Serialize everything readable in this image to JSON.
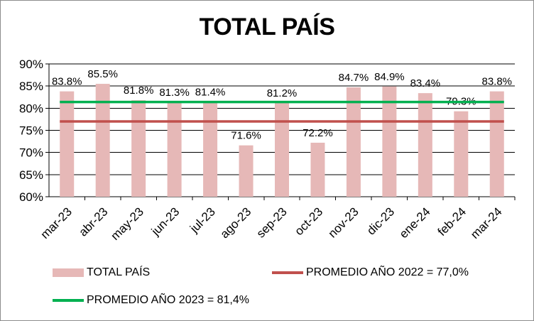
{
  "chart_data": {
    "type": "bar",
    "title": "TOTAL PAÍS",
    "categories": [
      "mar-23",
      "abr-23",
      "may-23",
      "jun-23",
      "jul-23",
      "ago-23",
      "sep-23",
      "oct-23",
      "nov-23",
      "dic-23",
      "ene-24",
      "feb-24",
      "mar-24"
    ],
    "series": [
      {
        "name": "TOTAL PAÍS",
        "type": "bar",
        "color": "#e6b8b7",
        "values": [
          83.8,
          85.5,
          81.8,
          81.3,
          81.4,
          71.6,
          81.2,
          72.2,
          84.7,
          84.9,
          83.4,
          79.3,
          83.8
        ],
        "labels": [
          "83.8%",
          "85.5%",
          "81.8%",
          "81.3%",
          "81.4%",
          "71.6%",
          "81.2%",
          "72.2%",
          "84.7%",
          "84.9%",
          "83.4%",
          "79.3%",
          "83.8%"
        ]
      },
      {
        "name": "PROMEDIO AÑO 2022 = 77,0%",
        "type": "line",
        "color": "#c0504d",
        "value": 77.0
      },
      {
        "name": "PROMEDIO AÑO 2023 = 81,4%",
        "type": "line",
        "color": "#00b050",
        "value": 81.4
      }
    ],
    "ylim": [
      60,
      90
    ],
    "yticks": [
      {
        "value": 60,
        "label": "60%"
      },
      {
        "value": 65,
        "label": "65%"
      },
      {
        "value": 70,
        "label": "70%"
      },
      {
        "value": 75,
        "label": "75%"
      },
      {
        "value": 80,
        "label": "80%"
      },
      {
        "value": 85,
        "label": "85%"
      },
      {
        "value": 90,
        "label": "90%"
      }
    ],
    "grid": true,
    "legend": "bottom",
    "xlabel": "",
    "ylabel": ""
  }
}
